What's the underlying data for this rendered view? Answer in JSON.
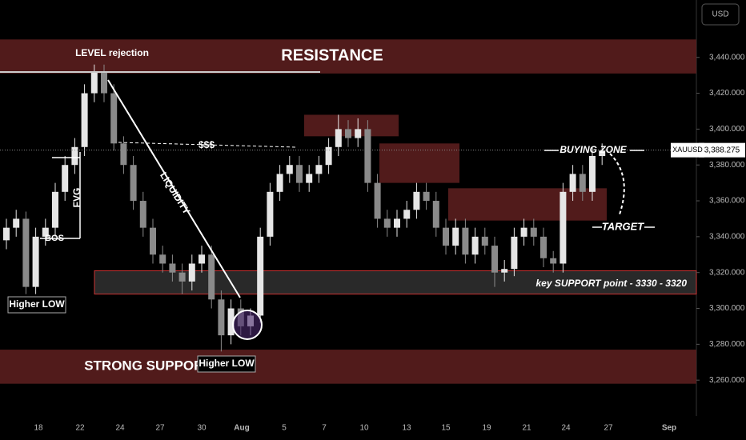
{
  "chart_data": {
    "type": "candlestick",
    "currency": "USD",
    "symbol": "XAUUSD",
    "last_price": {
      "value": 3388.275,
      "label": "3,388.275"
    },
    "ylim": [
      3240,
      3472
    ],
    "yticks": [
      {
        "value": 3260,
        "label": "3,260.000"
      },
      {
        "value": 3280,
        "label": "3,280.000"
      },
      {
        "value": 3300,
        "label": "3,300.000"
      },
      {
        "value": 3320,
        "label": "3,320.000"
      },
      {
        "value": 3340,
        "label": "3,340.000"
      },
      {
        "value": 3360,
        "label": "3,360.000"
      },
      {
        "value": 3380,
        "label": "3,380.000"
      },
      {
        "value": 3400,
        "label": "3,400.000"
      },
      {
        "value": 3420,
        "label": "3,420.000"
      },
      {
        "value": 3440,
        "label": "3,440.000"
      }
    ],
    "x_labels": [
      "18",
      "22",
      "24",
      "27",
      "30",
      "Aug",
      "5",
      "7",
      "10",
      "13",
      "15",
      "19",
      "21",
      "24",
      "27",
      "Sep"
    ],
    "up_color": "#e6e6e6",
    "down_color": "#8a8a8a",
    "open": [
      3338,
      3345,
      3350,
      3312,
      3340,
      3345,
      3365,
      3380,
      3390,
      3420,
      3432,
      3420,
      3392,
      3380,
      3360,
      3345,
      3330,
      3325,
      3320,
      3315,
      3325,
      3330,
      3305,
      3285,
      3300,
      3290,
      3296,
      3340,
      3365,
      3375,
      3380,
      3370,
      3375,
      3380,
      3390,
      3400,
      3395,
      3400,
      3370,
      3350,
      3345,
      3350,
      3355,
      3365,
      3360,
      3345,
      3335,
      3345,
      3330,
      3340,
      3335,
      3320,
      3322,
      3340,
      3345,
      3340,
      3328,
      3325,
      3365,
      3375,
      3365,
      3385
    ],
    "high": [
      3350,
      3355,
      3354,
      3345,
      3350,
      3370,
      3385,
      3395,
      3425,
      3436,
      3436,
      3425,
      3396,
      3385,
      3365,
      3350,
      3335,
      3330,
      3325,
      3330,
      3335,
      3335,
      3310,
      3305,
      3305,
      3300,
      3345,
      3370,
      3380,
      3385,
      3385,
      3380,
      3385,
      3395,
      3408,
      3405,
      3406,
      3405,
      3375,
      3355,
      3355,
      3360,
      3370,
      3370,
      3365,
      3350,
      3350,
      3350,
      3345,
      3345,
      3340,
      3327,
      3345,
      3350,
      3350,
      3345,
      3332,
      3370,
      3380,
      3380,
      3390,
      3392
    ],
    "low": [
      3333,
      3340,
      3308,
      3308,
      3335,
      3340,
      3360,
      3375,
      3385,
      3415,
      3415,
      3388,
      3375,
      3355,
      3340,
      3325,
      3320,
      3315,
      3308,
      3310,
      3320,
      3300,
      3276,
      3280,
      3285,
      3285,
      3292,
      3335,
      3360,
      3370,
      3365,
      3365,
      3370,
      3375,
      3385,
      3390,
      3390,
      3365,
      3345,
      3340,
      3340,
      3345,
      3350,
      3355,
      3340,
      3330,
      3330,
      3325,
      3325,
      3330,
      3312,
      3315,
      3318,
      3335,
      3335,
      3323,
      3320,
      3320,
      3360,
      3360,
      3360,
      3380
    ],
    "close": [
      3345,
      3350,
      3312,
      3340,
      3345,
      3365,
      3380,
      3390,
      3420,
      3432,
      3420,
      3392,
      3380,
      3360,
      3345,
      3330,
      3325,
      3320,
      3315,
      3325,
      3330,
      3305,
      3285,
      3300,
      3290,
      3296,
      3340,
      3365,
      3375,
      3380,
      3370,
      3375,
      3380,
      3390,
      3400,
      3395,
      3400,
      3370,
      3350,
      3345,
      3350,
      3355,
      3365,
      3360,
      3345,
      3335,
      3345,
      3330,
      3340,
      3335,
      3320,
      3322,
      3340,
      3345,
      3340,
      3328,
      3325,
      3365,
      3375,
      3365,
      3385,
      3388
    ],
    "zones": [
      {
        "label": "RESISTANCE",
        "top": 3450,
        "bottom": 3431,
        "color": "#5a1e1e"
      },
      {
        "top": 3408,
        "bottom": 3396,
        "color": "#5a1e1e"
      },
      {
        "top": 3392,
        "bottom": 3370,
        "color": "#5a1e1e"
      },
      {
        "top": 3367,
        "bottom": 3349,
        "color": "#5a1e1e"
      },
      {
        "label": "key SUPPORT point - 3330 - 3320",
        "top": 3321,
        "bottom": 3308,
        "color": "#2e2e2e"
      },
      {
        "label": "STRONG SUPPORT",
        "top": 3277,
        "bottom": 3258,
        "color": "#5a1e1e"
      }
    ],
    "annotations": [
      "LEVEL rejection",
      "$$$",
      "LIQUIDITY",
      "FVG",
      "BOS",
      "Higher LOW",
      "Higher LOW",
      "BUYING ZONE",
      "TARGET"
    ]
  }
}
